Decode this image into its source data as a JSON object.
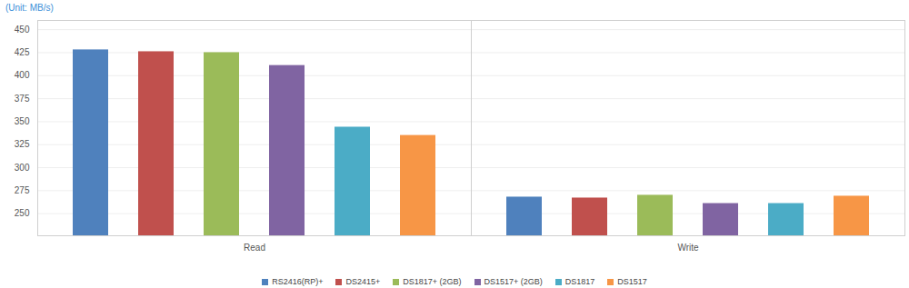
{
  "chart_data": {
    "type": "bar",
    "y_label": "(Unit: MB/s)",
    "categories": [
      "Read",
      "Write"
    ],
    "series": [
      {
        "name": "RS2416(RP)+",
        "color": "#4f81bd",
        "values": [
          428,
          268
        ]
      },
      {
        "name": "DS2415+",
        "color": "#c0504d",
        "values": [
          426,
          267
        ]
      },
      {
        "name": "DS1817+ (2GB)",
        "color": "#9bbb59",
        "values": [
          425,
          270
        ]
      },
      {
        "name": "DS1517+ (2GB)",
        "color": "#8064a2",
        "values": [
          411,
          261
        ]
      },
      {
        "name": "DS1817",
        "color": "#4bacc6",
        "values": [
          344,
          261
        ]
      },
      {
        "name": "DS1517",
        "color": "#f79646",
        "values": [
          335,
          269
        ]
      }
    ],
    "ylim": [
      226,
      460
    ],
    "yticks": [
      250,
      275,
      300,
      325,
      350,
      375,
      400,
      425,
      450
    ],
    "grid": true,
    "legend": "bottom"
  }
}
